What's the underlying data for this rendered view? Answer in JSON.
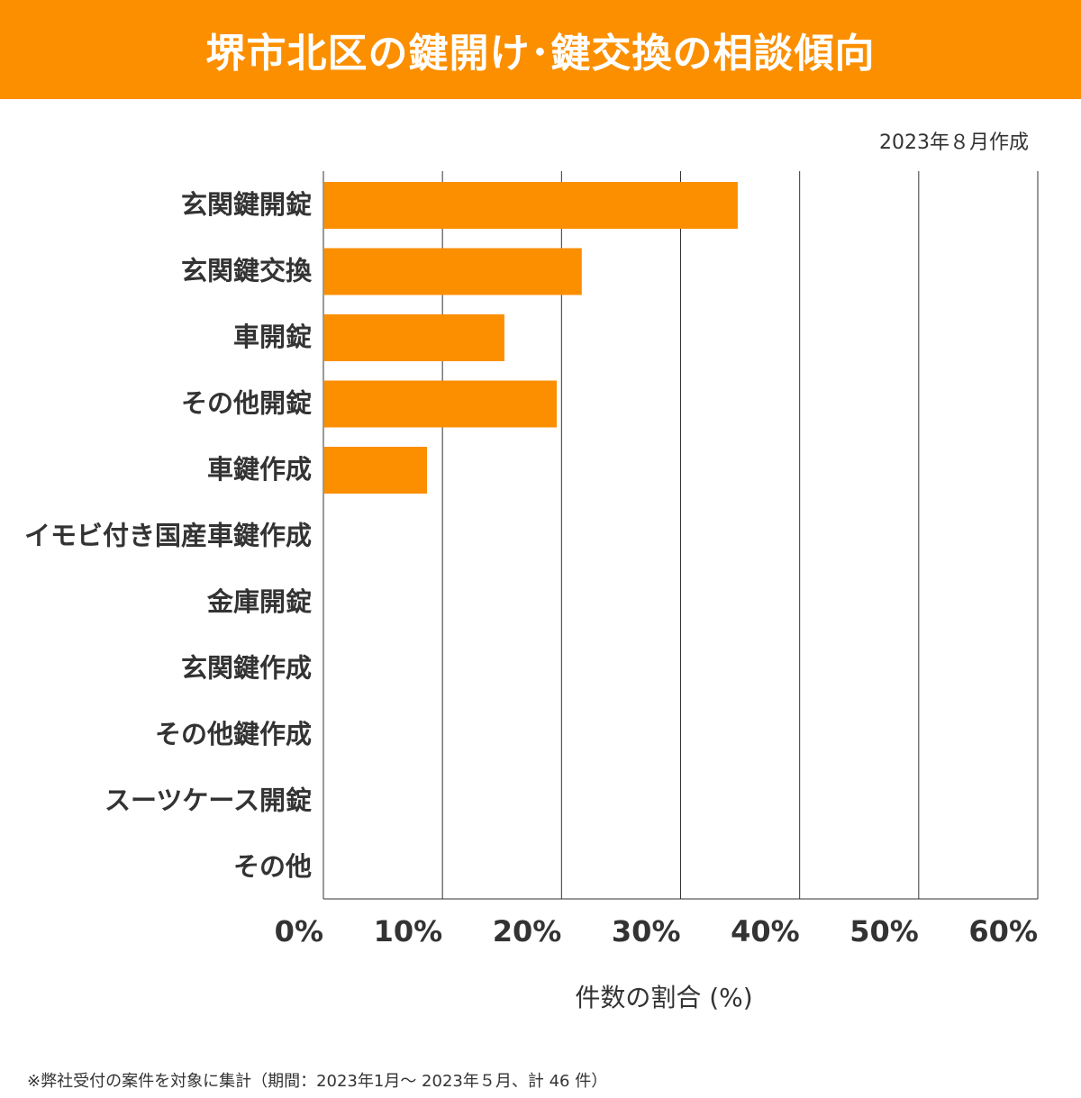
{
  "header": {
    "title": "堺市北区の鍵開け･鍵交換の相談傾向"
  },
  "meta": {
    "date": "2023年８月作成",
    "footnote": "※弊社受付の案件を対象に集計（期間：2023年1月～ 2023年５月、計 46 件）"
  },
  "colors": {
    "accent": "#fb8f00",
    "bar": "#fb8f00",
    "grid": "#333333"
  },
  "chart_data": {
    "type": "bar",
    "orientation": "horizontal",
    "title": "",
    "xlabel": "件数の割合 (%)",
    "ylabel": "",
    "xlim": [
      0,
      60
    ],
    "xticks": [
      "0%",
      "10%",
      "20%",
      "30%",
      "40%",
      "50%",
      "60%"
    ],
    "grid": true,
    "categories": [
      "玄関鍵開錠",
      "玄関鍵交換",
      "車開錠",
      "その他開錠",
      "車鍵作成",
      "イモビ付き国産車鍵作成",
      "金庫開錠",
      "玄関鍵作成",
      "その他鍵作成",
      "スーツケース開錠",
      "その他"
    ],
    "values": [
      34.8,
      21.7,
      15.2,
      19.6,
      8.7,
      0,
      0,
      0,
      0,
      0,
      0
    ]
  }
}
